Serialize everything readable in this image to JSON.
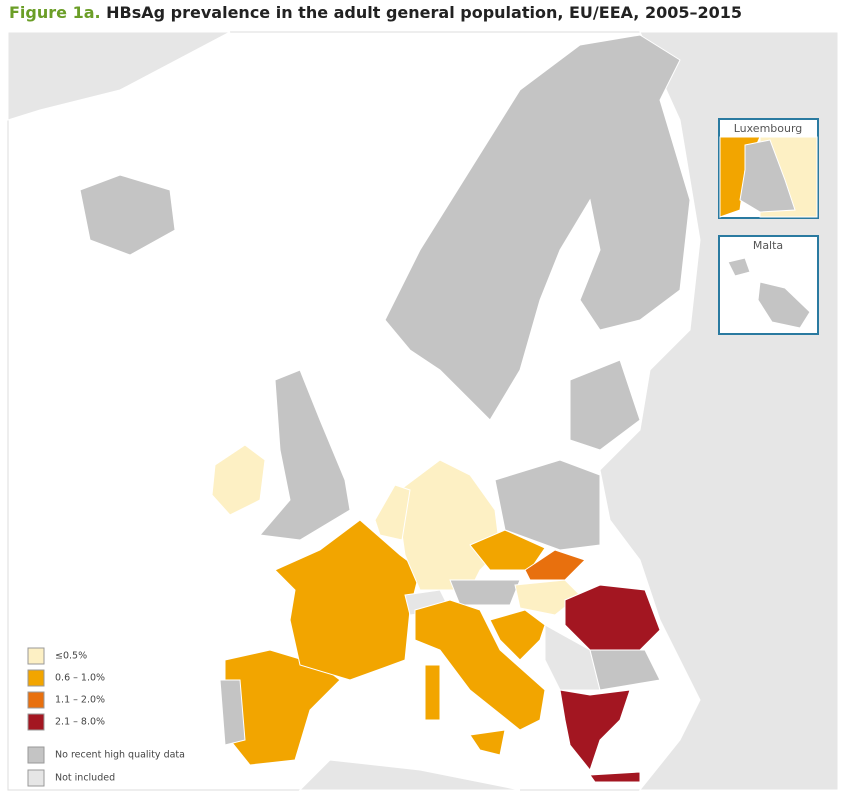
{
  "title": {
    "prefix": "Figure 1a.",
    "text": "HBsAg prevalence in the adult general population, EU/EEA, 2005–2015"
  },
  "insets": [
    "Luxembourg",
    "Malta"
  ],
  "legend": [
    {
      "label": "≤0.5%",
      "color": "#fdf0c4"
    },
    {
      "label": "0.6 – 1.0%",
      "color": "#f2a500"
    },
    {
      "label": "1.1 – 2.0%",
      "color": "#e8700e"
    },
    {
      "label": "2.1 – 8.0%",
      "color": "#a31621"
    },
    {
      "label": "No recent high quality data",
      "color": "#c4c4c4"
    },
    {
      "label": "Not included",
      "color": "#e6e6e6"
    }
  ]
}
